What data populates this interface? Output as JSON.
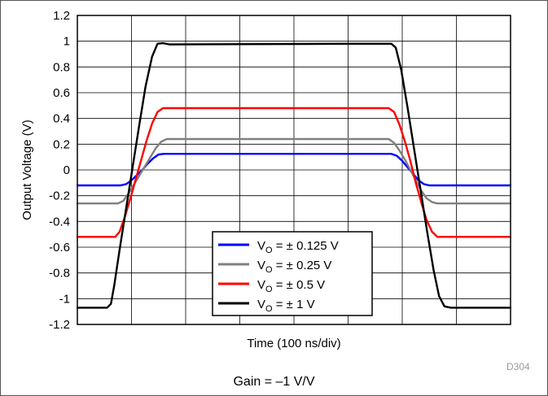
{
  "chart_data": {
    "type": "line",
    "xlabel": "Time (100 ns/div)",
    "ylabel": "Output Voltage (V)",
    "ylim": [
      -1.2,
      1.2
    ],
    "yticks": [
      "1.2",
      "1",
      "0.8",
      "0.6",
      "0.4",
      "0.2",
      "0",
      "-0.2",
      "-0.4",
      "-0.6",
      "-0.8",
      "-1",
      "-1.2"
    ],
    "xlim": [
      0,
      800
    ],
    "x_unit": "ns",
    "x_grid_step": 100,
    "grid": true,
    "legend_position": "bottom-center",
    "series": [
      {
        "name": "VO = ± 0.125 V",
        "color": "#0000ff",
        "points": [
          [
            0,
            -0.12
          ],
          [
            80,
            -0.12
          ],
          [
            90,
            -0.11
          ],
          [
            100,
            -0.08
          ],
          [
            110,
            -0.04
          ],
          [
            120,
            0.0
          ],
          [
            130,
            0.05
          ],
          [
            140,
            0.09
          ],
          [
            150,
            0.12
          ],
          [
            160,
            0.125
          ],
          [
            580,
            0.125
          ],
          [
            590,
            0.11
          ],
          [
            600,
            0.07
          ],
          [
            610,
            0.02
          ],
          [
            620,
            -0.03
          ],
          [
            630,
            -0.08
          ],
          [
            640,
            -0.11
          ],
          [
            650,
            -0.12
          ],
          [
            800,
            -0.12
          ]
        ]
      },
      {
        "name": "VO = ± 0.25 V",
        "color": "#808080",
        "points": [
          [
            0,
            -0.26
          ],
          [
            75,
            -0.26
          ],
          [
            85,
            -0.24
          ],
          [
            95,
            -0.18
          ],
          [
            105,
            -0.11
          ],
          [
            115,
            -0.04
          ],
          [
            125,
            0.03
          ],
          [
            135,
            0.1
          ],
          [
            145,
            0.17
          ],
          [
            155,
            0.22
          ],
          [
            165,
            0.24
          ],
          [
            575,
            0.24
          ],
          [
            585,
            0.21
          ],
          [
            595,
            0.15
          ],
          [
            605,
            0.08
          ],
          [
            615,
            0.0
          ],
          [
            625,
            -0.08
          ],
          [
            635,
            -0.16
          ],
          [
            645,
            -0.22
          ],
          [
            655,
            -0.25
          ],
          [
            665,
            -0.26
          ],
          [
            800,
            -0.26
          ]
        ]
      },
      {
        "name": "VO = ± 0.5 V",
        "color": "#ff0000",
        "points": [
          [
            0,
            -0.52
          ],
          [
            70,
            -0.52
          ],
          [
            78,
            -0.48
          ],
          [
            88,
            -0.36
          ],
          [
            98,
            -0.22
          ],
          [
            108,
            -0.07
          ],
          [
            118,
            0.08
          ],
          [
            128,
            0.23
          ],
          [
            138,
            0.36
          ],
          [
            148,
            0.45
          ],
          [
            158,
            0.48
          ],
          [
            575,
            0.48
          ],
          [
            585,
            0.45
          ],
          [
            595,
            0.35
          ],
          [
            605,
            0.22
          ],
          [
            615,
            0.07
          ],
          [
            625,
            -0.1
          ],
          [
            635,
            -0.25
          ],
          [
            645,
            -0.39
          ],
          [
            655,
            -0.48
          ],
          [
            665,
            -0.52
          ],
          [
            800,
            -0.52
          ]
        ]
      },
      {
        "name": "VO = ± 1 V",
        "color": "#000000",
        "points": [
          [
            0,
            -1.07
          ],
          [
            55,
            -1.07
          ],
          [
            62,
            -1.04
          ],
          [
            68,
            -0.9
          ],
          [
            78,
            -0.62
          ],
          [
            90,
            -0.3
          ],
          [
            102,
            0.02
          ],
          [
            114,
            0.34
          ],
          [
            126,
            0.65
          ],
          [
            138,
            0.88
          ],
          [
            148,
            0.98
          ],
          [
            158,
            0.985
          ],
          [
            170,
            0.975
          ],
          [
            500,
            0.98
          ],
          [
            580,
            0.98
          ],
          [
            588,
            0.95
          ],
          [
            598,
            0.78
          ],
          [
            610,
            0.48
          ],
          [
            622,
            0.16
          ],
          [
            634,
            -0.16
          ],
          [
            646,
            -0.48
          ],
          [
            658,
            -0.78
          ],
          [
            668,
            -0.98
          ],
          [
            678,
            -1.06
          ],
          [
            690,
            -1.07
          ],
          [
            800,
            -1.07
          ]
        ]
      }
    ]
  },
  "legend": {
    "items": [
      {
        "prefix": "V",
        "sub": "O",
        "value": " = ± 0.125 V",
        "color": "#0000ff"
      },
      {
        "prefix": "V",
        "sub": "O",
        "value": " = ± 0.25 V",
        "color": "#808080"
      },
      {
        "prefix": "V",
        "sub": "O",
        "value": " = ± 0.5 V",
        "color": "#ff0000"
      },
      {
        "prefix": "V",
        "sub": "O",
        "value": " = ± 1 V",
        "color": "#000000"
      }
    ]
  },
  "watermark": "D304",
  "caption": "Gain = –1 V/V"
}
